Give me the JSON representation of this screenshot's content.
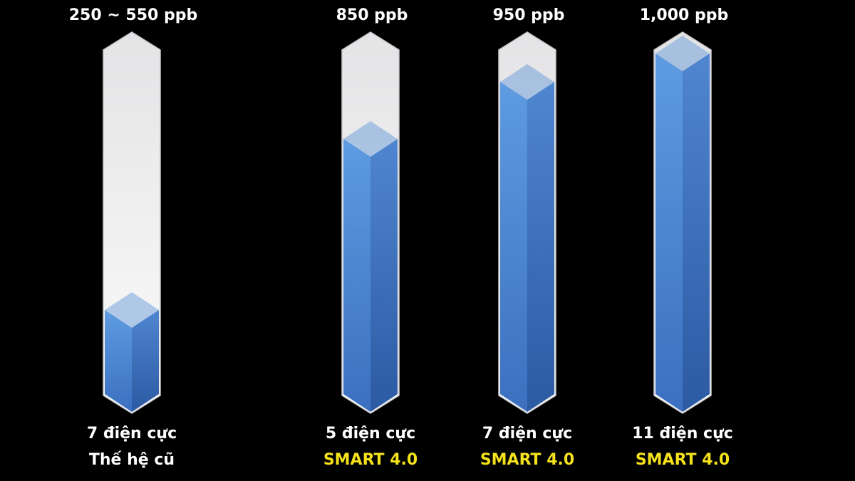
{
  "chart_data": {
    "type": "bar",
    "categories": [
      "7 điện cực",
      "5 điện cực",
      "7 điện cực",
      "11 điện cực"
    ],
    "sublabels": [
      "Thế hệ cũ",
      "SMART 4.0",
      "SMART 4.0",
      "SMART 4.0"
    ],
    "sublabel_colors": [
      "#ffffff",
      "#f5e21b",
      "#f5e21b",
      "#f5e21b"
    ],
    "values": [
      550,
      850,
      950,
      1000
    ],
    "value_labels": [
      "250 ~ 550 ppb",
      "850 ppb",
      "950 ppb",
      "1,000 ppb"
    ],
    "color": "#5b93d8",
    "ylim": [
      400,
      1000
    ]
  }
}
